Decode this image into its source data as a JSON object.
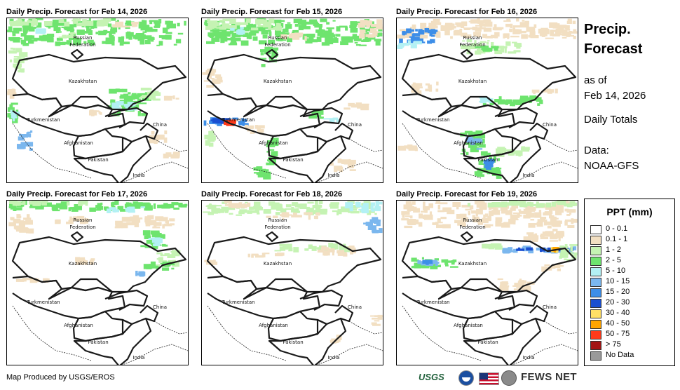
{
  "panels": [
    {
      "title": "Daily Precip. Forecast for Feb 14, 2026"
    },
    {
      "title": "Daily Precip. Forecast for Feb 15, 2026"
    },
    {
      "title": "Daily Precip. Forecast for Feb 16, 2026"
    },
    {
      "title": "Daily Precip. Forecast for Feb 17, 2026"
    },
    {
      "title": "Daily Precip. Forecast for Feb 18, 2026"
    },
    {
      "title": "Daily Precip. Forecast for Feb 19, 2026"
    }
  ],
  "map_labels": {
    "russia_1": "Russian",
    "russia_2": "Federation",
    "kazakhstan": "Kazakhstan",
    "turkmenistan": "Turkmenistan",
    "china": "China",
    "afghanistan": "Afghanistan",
    "pakistan": "Pakistan",
    "india": "India"
  },
  "side": {
    "title_1": "Precip.",
    "title_2": "Forecast",
    "asof_1": "as of",
    "asof_2": "Feb 14, 2026",
    "totals": "Daily Totals",
    "data_1": "Data:",
    "data_2": "NOAA-GFS"
  },
  "legend": {
    "title": "PPT (mm)",
    "items": [
      {
        "label": "0 - 0.1",
        "color": "#ffffff"
      },
      {
        "label": "0.1 - 1",
        "color": "#f2dfc2"
      },
      {
        "label": "1 - 2",
        "color": "#c5f3b3"
      },
      {
        "label": "2 - 5",
        "color": "#6ee46e"
      },
      {
        "label": "5 - 10",
        "color": "#b3f1f4"
      },
      {
        "label": "10 - 15",
        "color": "#7bb7ee"
      },
      {
        "label": "15 - 20",
        "color": "#3d8ee8"
      },
      {
        "label": "20 - 30",
        "color": "#1a4fd1"
      },
      {
        "label": "30 - 40",
        "color": "#ffe066"
      },
      {
        "label": "40 - 50",
        "color": "#ffa500"
      },
      {
        "label": "50 - 75",
        "color": "#ff3a1a"
      },
      {
        "label": "> 75",
        "color": "#a31515"
      },
      {
        "label": "No Data",
        "color": "#9a9a9a"
      }
    ]
  },
  "credit": "Map Produced by USGS/EROS",
  "logos": {
    "usgs": "USGS",
    "fews": "FEWS NET",
    "icons": [
      "noaa-logo",
      "us-flag",
      "usaid-seal"
    ]
  }
}
